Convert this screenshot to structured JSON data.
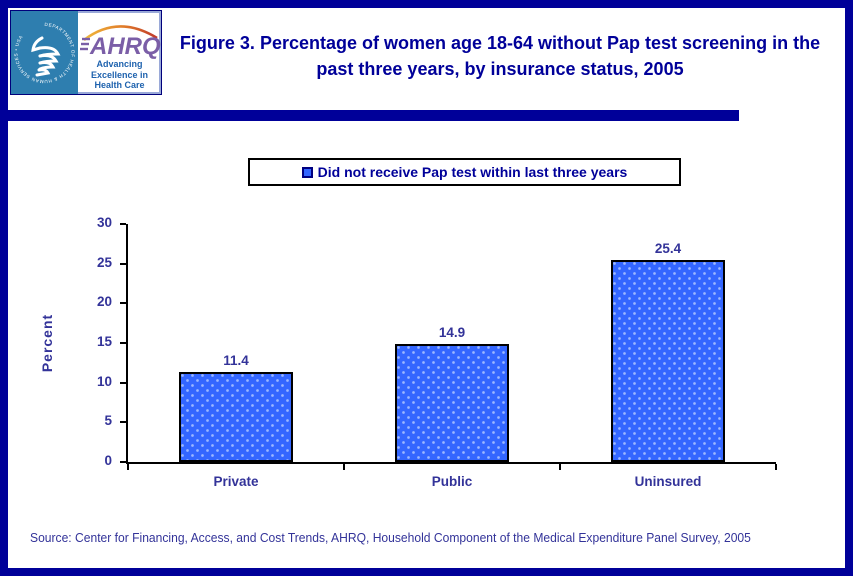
{
  "page": {
    "border_color": "#000099",
    "background_color": "#ffffff"
  },
  "header": {
    "hhs_logo": {
      "circle_text": "DEPARTMENT OF HEALTH & HUMAN SERVICES • USA",
      "bg_color": "#2e7eaf"
    },
    "ahrq_logo": {
      "acronym": "AHRQ",
      "acronym_color": "#7b5ea7",
      "tagline_lines": [
        "Advancing",
        "Excellence in",
        "Health Care"
      ],
      "tagline_color": "#1e62ae"
    },
    "title": "Figure 3. Percentage of women age 18-64 without Pap test screening in the past three years, by insurance status, 2005",
    "title_color": "#000099",
    "divider_color": "#000099"
  },
  "legend": {
    "label": "Did not receive Pap test within last three years",
    "marker_color": "#3366ff",
    "marker_border_color": "#000080"
  },
  "chart_data": {
    "type": "bar",
    "categories": [
      "Private",
      "Public",
      "Uninsured"
    ],
    "values": [
      11.4,
      14.9,
      25.4
    ],
    "value_labels": [
      "11.4",
      "14.9",
      "25.4"
    ],
    "series_name": "Did not receive Pap test within last three years",
    "title": "",
    "xlabel": "",
    "ylabel": "Percent",
    "ylim": [
      0,
      30
    ],
    "yticks": [
      0,
      5,
      10,
      15,
      20,
      25,
      30
    ],
    "grid": false,
    "legend_position": "top",
    "bar_color": "#3366ff",
    "bar_border_color": "#000000",
    "label_color": "#333399"
  },
  "footer": {
    "source": "Source: Center for Financing, Access, and Cost Trends, AHRQ, Household Component of the Medical Expenditure Panel Survey, 2005"
  }
}
